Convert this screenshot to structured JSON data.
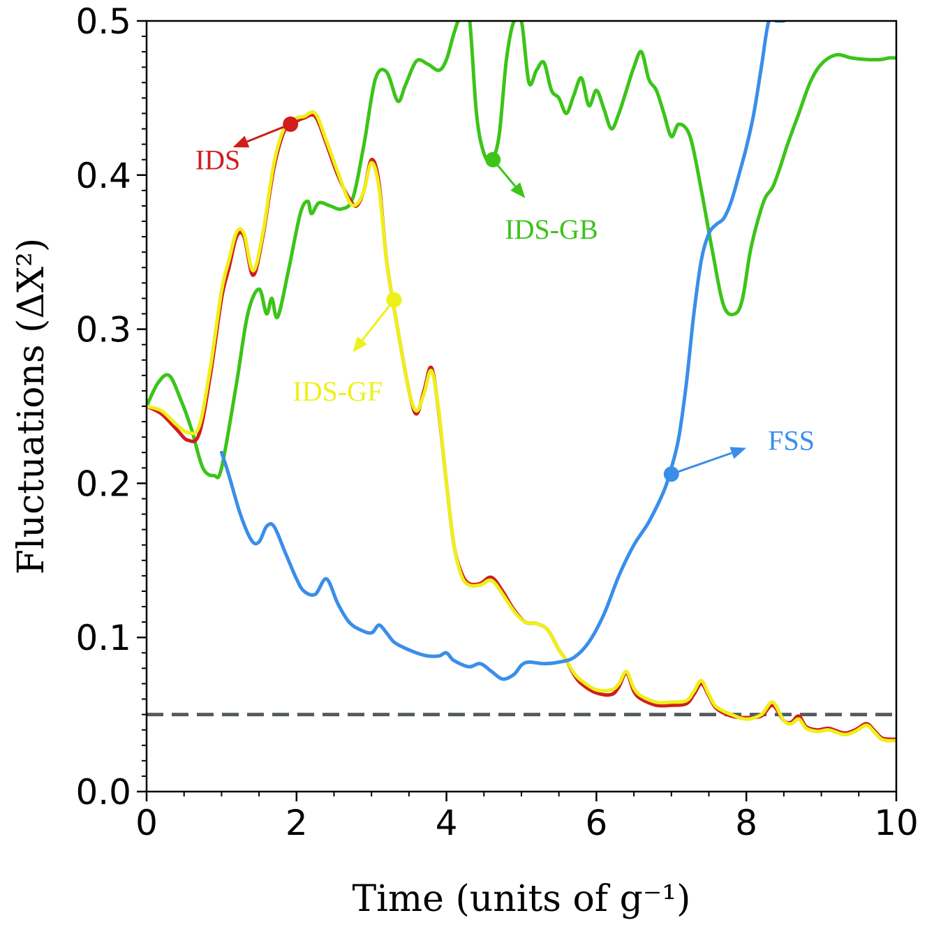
{
  "chart_data": {
    "type": "line",
    "xlabel": "Time (units of g⁻¹)",
    "ylabel": "Fluctuations (ΔX²)",
    "xlim": [
      0,
      10
    ],
    "ylim": [
      0,
      0.5
    ],
    "xticks": [
      0,
      2,
      4,
      6,
      8,
      10
    ],
    "xtick_labels": [
      "0",
      "2",
      "4",
      "6",
      "8",
      "10"
    ],
    "yticks": [
      0,
      0.1,
      0.2,
      0.3,
      0.4,
      0.5
    ],
    "ytick_labels": [
      "0.0",
      "0.1",
      "0.2",
      "0.3",
      "0.4",
      "0.5"
    ],
    "reference_line": {
      "y": 0.05,
      "style": "dashed",
      "color": "#545b5f"
    },
    "series": [
      {
        "name": "IDS-GB",
        "color": "#3cc419",
        "x": [
          0,
          0.15,
          0.3,
          0.45,
          0.6,
          0.75,
          0.9,
          1.0,
          1.2,
          1.35,
          1.5,
          1.6,
          1.67,
          1.75,
          1.9,
          2.05,
          2.15,
          2.2,
          2.3,
          2.45,
          2.6,
          2.75,
          2.9,
          3.05,
          3.2,
          3.35,
          3.45,
          3.6,
          3.75,
          3.9,
          4.0,
          4.1,
          4.2,
          4.3,
          4.4,
          4.5,
          4.6,
          4.7,
          4.8,
          4.9,
          5.0,
          5.1,
          5.2,
          5.3,
          5.4,
          5.5,
          5.6,
          5.7,
          5.8,
          5.9,
          6.0,
          6.1,
          6.2,
          6.3,
          6.4,
          6.5,
          6.6,
          6.7,
          6.8,
          6.9,
          7.0,
          7.1,
          7.25,
          7.4,
          7.55,
          7.7,
          7.85,
          7.95,
          8.05,
          8.15,
          8.25,
          8.35,
          8.45,
          8.55,
          8.7,
          8.85,
          9.0,
          9.2,
          9.4,
          9.6,
          9.8,
          9.9,
          10.0
        ],
        "y": [
          0.25,
          0.265,
          0.27,
          0.255,
          0.235,
          0.21,
          0.205,
          0.21,
          0.265,
          0.31,
          0.326,
          0.31,
          0.32,
          0.308,
          0.34,
          0.375,
          0.383,
          0.375,
          0.382,
          0.38,
          0.378,
          0.385,
          0.42,
          0.462,
          0.467,
          0.448,
          0.458,
          0.474,
          0.472,
          0.468,
          0.475,
          0.492,
          0.505,
          0.505,
          0.44,
          0.414,
          0.41,
          0.425,
          0.475,
          0.5,
          0.5,
          0.46,
          0.468,
          0.473,
          0.455,
          0.45,
          0.44,
          0.452,
          0.463,
          0.445,
          0.455,
          0.443,
          0.43,
          0.44,
          0.455,
          0.47,
          0.48,
          0.462,
          0.455,
          0.44,
          0.425,
          0.433,
          0.425,
          0.39,
          0.35,
          0.315,
          0.31,
          0.32,
          0.35,
          0.37,
          0.385,
          0.392,
          0.405,
          0.42,
          0.44,
          0.46,
          0.472,
          0.478,
          0.476,
          0.475,
          0.475,
          0.476,
          0.476
        ]
      },
      {
        "name": "IDS",
        "color": "#d11d1d",
        "x": [
          0,
          0.2,
          0.4,
          0.55,
          0.7,
          0.85,
          1.0,
          1.1,
          1.2,
          1.3,
          1.42,
          1.55,
          1.7,
          1.85,
          2.0,
          2.1,
          2.25,
          2.4,
          2.55,
          2.7,
          2.8,
          2.9,
          3.0,
          3.1,
          3.2,
          3.35,
          3.5,
          3.6,
          3.7,
          3.8,
          3.9,
          4.0,
          4.1,
          4.2,
          4.3,
          4.45,
          4.6,
          4.75,
          4.9,
          5.05,
          5.2,
          5.35,
          5.5,
          5.6,
          5.7,
          5.8,
          6.0,
          6.2,
          6.3,
          6.4,
          6.5,
          6.6,
          6.8,
          7.0,
          7.2,
          7.3,
          7.4,
          7.5,
          7.6,
          7.8,
          8.0,
          8.2,
          8.35,
          8.5,
          8.6,
          8.7,
          8.8,
          8.95,
          9.1,
          9.3,
          9.45,
          9.6,
          9.7,
          9.8,
          9.9,
          10.0
        ],
        "y": [
          0.25,
          0.245,
          0.235,
          0.228,
          0.232,
          0.27,
          0.32,
          0.34,
          0.36,
          0.36,
          0.335,
          0.36,
          0.405,
          0.43,
          0.435,
          0.437,
          0.438,
          0.42,
          0.4,
          0.385,
          0.38,
          0.39,
          0.41,
          0.395,
          0.345,
          0.3,
          0.26,
          0.245,
          0.26,
          0.275,
          0.245,
          0.2,
          0.16,
          0.142,
          0.135,
          0.135,
          0.139,
          0.13,
          0.118,
          0.11,
          0.109,
          0.105,
          0.092,
          0.085,
          0.076,
          0.07,
          0.064,
          0.063,
          0.068,
          0.077,
          0.065,
          0.06,
          0.056,
          0.056,
          0.057,
          0.063,
          0.07,
          0.062,
          0.054,
          0.049,
          0.048,
          0.049,
          0.056,
          0.046,
          0.045,
          0.049,
          0.042,
          0.04,
          0.041,
          0.038,
          0.04,
          0.044,
          0.04,
          0.035,
          0.034,
          0.034
        ]
      },
      {
        "name": "IDS-GF",
        "color": "#eef019",
        "x": [
          0,
          0.2,
          0.4,
          0.55,
          0.7,
          0.85,
          1.0,
          1.1,
          1.2,
          1.3,
          1.42,
          1.55,
          1.7,
          1.85,
          2.0,
          2.1,
          2.25,
          2.4,
          2.55,
          2.7,
          2.8,
          2.9,
          3.0,
          3.1,
          3.2,
          3.35,
          3.5,
          3.6,
          3.7,
          3.8,
          3.9,
          4.0,
          4.1,
          4.2,
          4.3,
          4.45,
          4.6,
          4.75,
          4.9,
          5.05,
          5.2,
          5.35,
          5.5,
          5.6,
          5.7,
          5.8,
          6.0,
          6.2,
          6.3,
          6.4,
          6.5,
          6.6,
          6.8,
          7.0,
          7.2,
          7.3,
          7.4,
          7.5,
          7.6,
          7.8,
          8.0,
          8.2,
          8.35,
          8.5,
          8.6,
          8.7,
          8.8,
          8.95,
          9.1,
          9.3,
          9.45,
          9.6,
          9.7,
          9.8,
          9.9,
          10.0
        ],
        "y": [
          0.25,
          0.247,
          0.238,
          0.233,
          0.237,
          0.275,
          0.325,
          0.345,
          0.363,
          0.362,
          0.338,
          0.362,
          0.408,
          0.432,
          0.437,
          0.438,
          0.44,
          0.422,
          0.402,
          0.383,
          0.381,
          0.39,
          0.408,
          0.392,
          0.345,
          0.3,
          0.26,
          0.247,
          0.258,
          0.273,
          0.246,
          0.2,
          0.16,
          0.14,
          0.134,
          0.134,
          0.137,
          0.128,
          0.117,
          0.11,
          0.109,
          0.105,
          0.092,
          0.085,
          0.077,
          0.072,
          0.066,
          0.066,
          0.07,
          0.078,
          0.067,
          0.062,
          0.058,
          0.058,
          0.059,
          0.065,
          0.072,
          0.063,
          0.055,
          0.05,
          0.047,
          0.05,
          0.058,
          0.046,
          0.044,
          0.047,
          0.041,
          0.039,
          0.04,
          0.037,
          0.039,
          0.043,
          0.039,
          0.034,
          0.033,
          0.033
        ]
      },
      {
        "name": "FSS",
        "color": "#3a8ee9",
        "x": [
          1.0,
          1.1,
          1.25,
          1.4,
          1.5,
          1.6,
          1.7,
          1.85,
          2.0,
          2.1,
          2.25,
          2.4,
          2.55,
          2.7,
          2.85,
          3.0,
          3.1,
          3.2,
          3.3,
          3.45,
          3.6,
          3.75,
          3.9,
          4.0,
          4.1,
          4.3,
          4.45,
          4.6,
          4.75,
          4.9,
          5.0,
          5.1,
          5.3,
          5.5,
          5.7,
          5.9,
          6.1,
          6.3,
          6.5,
          6.7,
          6.9,
          7.0,
          7.1,
          7.2,
          7.3,
          7.4,
          7.5,
          7.6,
          7.7,
          7.8,
          7.9,
          8.0,
          8.1,
          8.2,
          8.3,
          8.4,
          8.5
        ],
        "y": [
          0.22,
          0.205,
          0.18,
          0.163,
          0.162,
          0.172,
          0.172,
          0.155,
          0.138,
          0.13,
          0.128,
          0.138,
          0.122,
          0.11,
          0.105,
          0.103,
          0.108,
          0.103,
          0.097,
          0.093,
          0.09,
          0.088,
          0.088,
          0.09,
          0.085,
          0.081,
          0.083,
          0.078,
          0.073,
          0.076,
          0.082,
          0.084,
          0.083,
          0.084,
          0.087,
          0.097,
          0.115,
          0.14,
          0.16,
          0.175,
          0.195,
          0.21,
          0.23,
          0.265,
          0.31,
          0.345,
          0.362,
          0.368,
          0.372,
          0.383,
          0.4,
          0.418,
          0.44,
          0.47,
          0.5,
          0.5,
          0.5
        ]
      }
    ],
    "annotations": [
      {
        "text": "IDS",
        "color": "#d11d1d",
        "point": [
          1.92,
          0.433
        ],
        "arrow_to": [
          1.15,
          0.418
        ],
        "label_at": [
          0.95,
          0.41
        ]
      },
      {
        "text": "IDS-GB",
        "color": "#3cc419",
        "point": [
          4.62,
          0.41
        ],
        "arrow_to": [
          5.05,
          0.385
        ],
        "label_at": [
          5.4,
          0.365
        ]
      },
      {
        "text": "IDS-GF",
        "color": "#eef019",
        "point": [
          3.3,
          0.319
        ],
        "arrow_to": [
          2.75,
          0.285
        ],
        "label_at": [
          2.55,
          0.26
        ]
      },
      {
        "text": "FSS",
        "color": "#3a8ee9",
        "point": [
          7.0,
          0.206
        ],
        "arrow_to": [
          8.0,
          0.223
        ],
        "label_at": [
          8.6,
          0.228
        ]
      }
    ]
  }
}
